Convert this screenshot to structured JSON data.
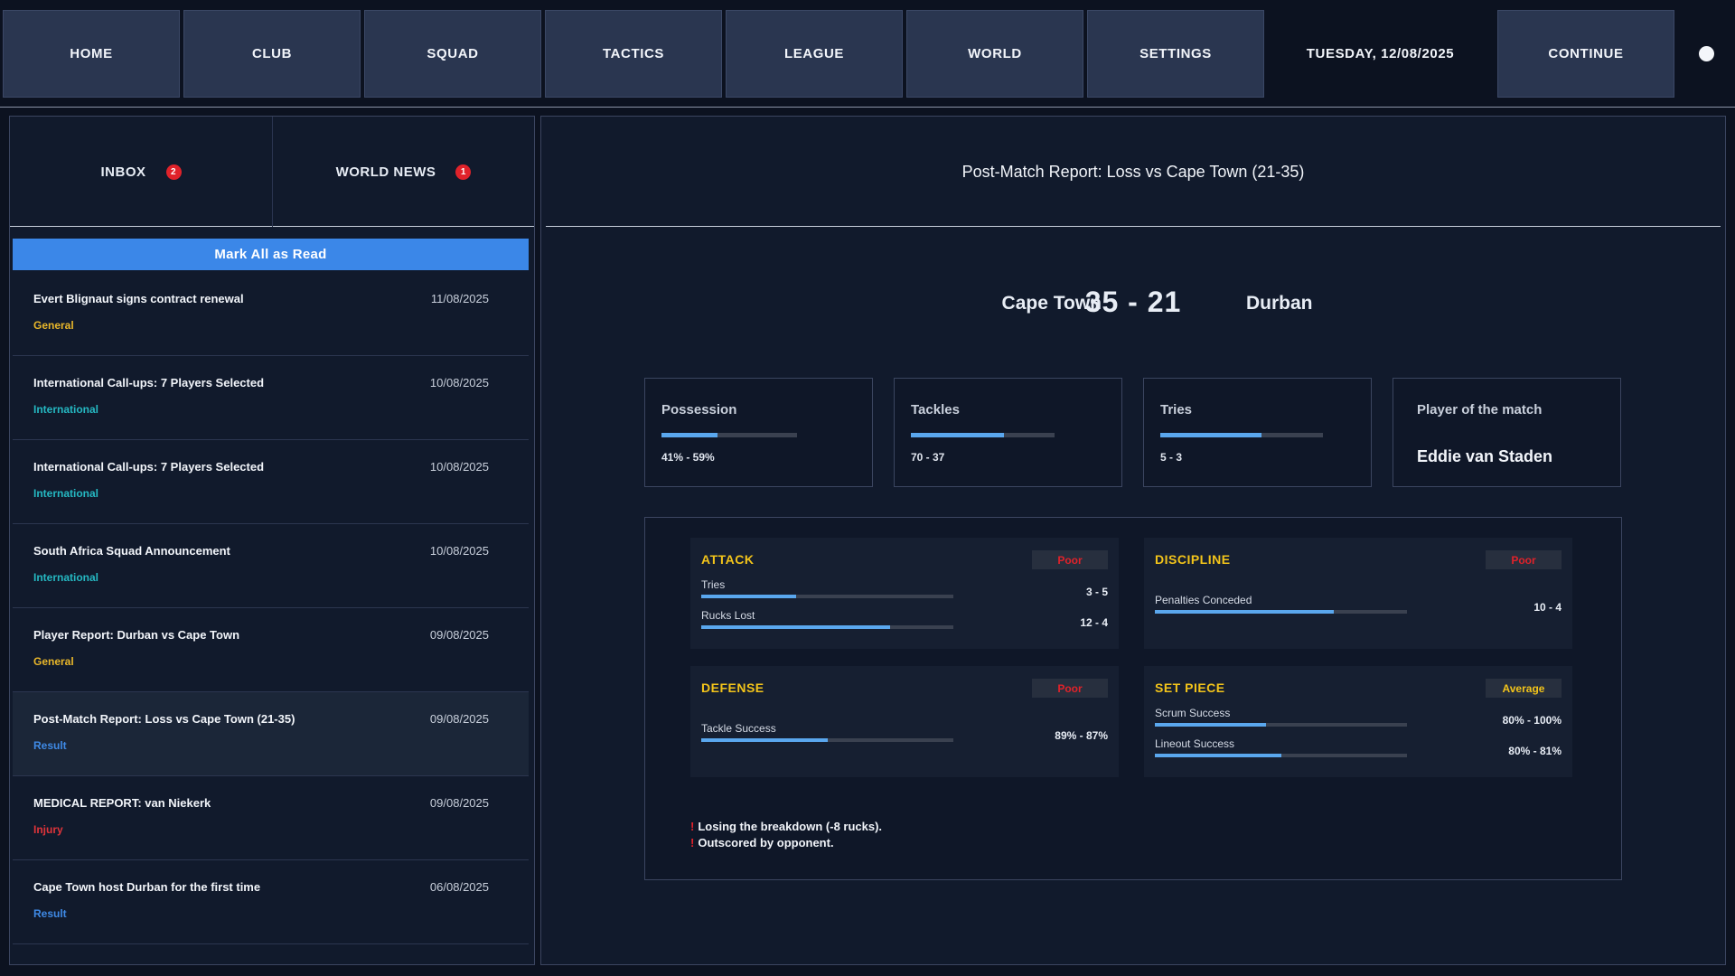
{
  "nav": {
    "home": "HOME",
    "club": "CLUB",
    "squad": "SQUAD",
    "tactics": "TACTICS",
    "league": "LEAGUE",
    "world": "WORLD",
    "settings": "SETTINGS",
    "date": "TUESDAY, 12/08/2025",
    "continue": "CONTINUE"
  },
  "left": {
    "tabs": [
      {
        "label": "INBOX",
        "badge": "2"
      },
      {
        "label": "WORLD NEWS",
        "badge": "1"
      }
    ],
    "mark_all": "Mark All as Read",
    "messages": [
      {
        "subject": "Evert Blignaut signs contract renewal",
        "date": "11/08/2025",
        "category": "General",
        "cat_color": "#e8b62a"
      },
      {
        "subject": "International Call-ups: 7 Players Selected",
        "date": "10/08/2025",
        "category": "International",
        "cat_color": "#25b8c2"
      },
      {
        "subject": "International Call-ups: 7 Players Selected",
        "date": "10/08/2025",
        "category": "International",
        "cat_color": "#25b8c2"
      },
      {
        "subject": "South Africa Squad Announcement",
        "date": "10/08/2025",
        "category": "International",
        "cat_color": "#25b8c2"
      },
      {
        "subject": "Player Report: Durban vs Cape Town",
        "date": "09/08/2025",
        "category": "General",
        "cat_color": "#e8b62a"
      },
      {
        "subject": "Post-Match Report: Loss vs Cape Town (21-35)",
        "date": "09/08/2025",
        "category": "Result",
        "cat_color": "#3f8ae6"
      },
      {
        "subject": "MEDICAL REPORT: van Niekerk",
        "date": "09/08/2025",
        "category": "Injury",
        "cat_color": "#e0343a"
      },
      {
        "subject": "Cape Town host Durban for the first time",
        "date": "06/08/2025",
        "category": "Result",
        "cat_color": "#3f8ae6"
      }
    ]
  },
  "report": {
    "title": "Post-Match Report: Loss vs Cape Town (21-35)",
    "home_team": "Cape Town",
    "score": "35 - 21",
    "away_team": "Durban",
    "cards": {
      "possession": {
        "label": "Possession",
        "value": "41% - 59%",
        "fill": 0.41
      },
      "tackles": {
        "label": "Tackles",
        "value": "70 - 37",
        "fill": 0.65
      },
      "tries": {
        "label": "Tries",
        "value": "5 - 3",
        "fill": 0.62
      },
      "potm": {
        "label": "Player of the match",
        "player": "Eddie van Staden"
      }
    },
    "sections": {
      "attack": {
        "title": "ATTACK",
        "rating": "Poor",
        "rating_color": "#e0222a",
        "stats": [
          {
            "label": "Tries",
            "value": "3 - 5",
            "fill": 0.375
          },
          {
            "label": "Rucks Lost",
            "value": "12 - 4",
            "fill": 0.75
          }
        ]
      },
      "discipline": {
        "title": "DISCIPLINE",
        "rating": "Poor",
        "rating_color": "#e0222a",
        "stats": [
          {
            "label": "Penalties Conceded",
            "value": "10 - 4",
            "fill": 0.71
          }
        ]
      },
      "defense": {
        "title": "DEFENSE",
        "rating": "Poor",
        "rating_color": "#e0222a",
        "stats": [
          {
            "label": "Tackle Success",
            "value": "89% - 87%",
            "fill": 0.5
          }
        ]
      },
      "set_piece": {
        "title": "SET PIECE",
        "rating": "Average",
        "rating_color": "#f3c41a",
        "stats": [
          {
            "label": "Scrum Success",
            "value": "80% - 100%",
            "fill": 0.44
          },
          {
            "label": "Lineout Success",
            "value": "80% - 81%",
            "fill": 0.5
          }
        ]
      }
    },
    "warnings": [
      "Losing the breakdown (-8 rucks).",
      "Outscored by opponent."
    ]
  }
}
